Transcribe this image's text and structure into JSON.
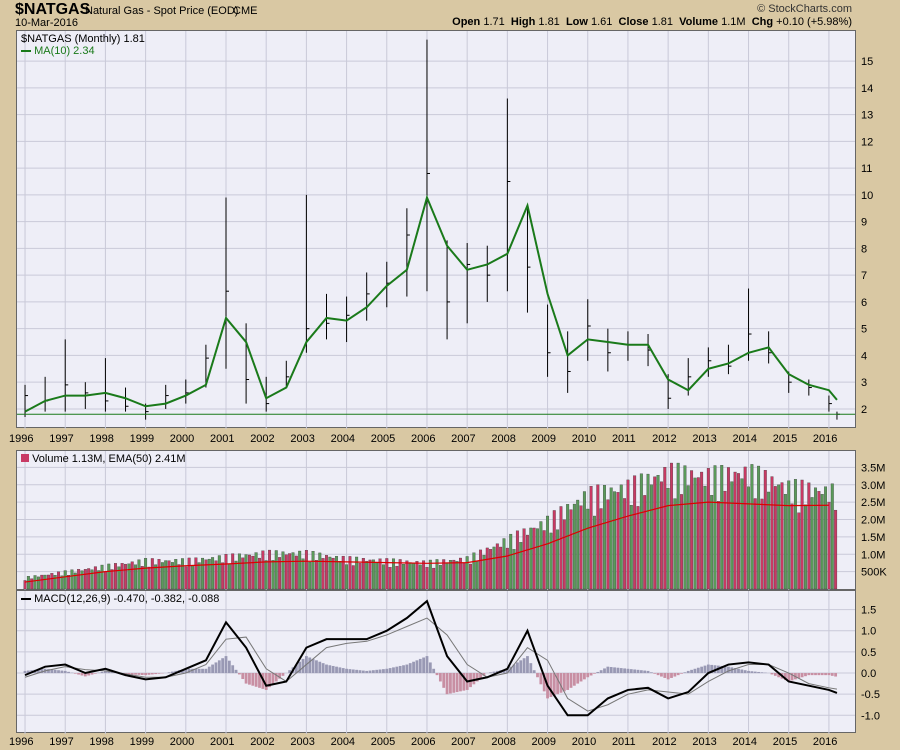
{
  "header": {
    "symbol": "$NATGAS",
    "description": "Natural Gas - Spot Price (EOD)",
    "exchange": "CME",
    "date": "10-Mar-2016",
    "brand": "© StockCharts.com",
    "open_label": "Open",
    "open": "1.71",
    "high_label": "High",
    "high": "1.81",
    "low_label": "Low",
    "low": "1.61",
    "close_label": "Close",
    "close": "1.81",
    "volume_label": "Volume",
    "volume": "1.1M",
    "chg_label": "Chg",
    "chg": "+0.10 (+5.98%)"
  },
  "colors": {
    "ma": "#1a7a1a",
    "ema": "#dd0000",
    "vol_up": "#5a9a5a",
    "vol_down": "#c83a64",
    "macd_line": "#000000",
    "signal_line": "#777777",
    "hist_pos": "#9999b4",
    "hist_neg": "#c88fa3"
  },
  "chart_data": [
    {
      "type": "line",
      "name": "price",
      "legend": [
        "$NATGAS (Monthly) 1.81",
        "MA(10) 2.34"
      ],
      "x_labels": [
        "1996",
        "1997",
        "1998",
        "1999",
        "2000",
        "2001",
        "2002",
        "2003",
        "2004",
        "2005",
        "2006",
        "2007",
        "2008",
        "2009",
        "2010",
        "2011",
        "2012",
        "2013",
        "2014",
        "2015",
        "2016"
      ],
      "y_ticks": [
        2,
        3,
        4,
        5,
        6,
        7,
        8,
        9,
        10,
        11,
        12,
        13,
        14,
        15
      ],
      "ylim": [
        1.4,
        15.9
      ],
      "x": [
        1996.0,
        1996.5,
        1997.0,
        1997.5,
        1998.0,
        1998.5,
        1999.0,
        1999.5,
        2000.0,
        2000.5,
        2001.0,
        2001.5,
        2002.0,
        2002.5,
        2003.0,
        2003.5,
        2004.0,
        2004.5,
        2005.0,
        2005.5,
        2006.0,
        2006.5,
        2007.0,
        2007.5,
        2008.0,
        2008.5,
        2009.0,
        2009.5,
        2010.0,
        2010.5,
        2011.0,
        2011.5,
        2012.0,
        2012.5,
        2013.0,
        2013.5,
        2014.0,
        2014.5,
        2015.0,
        2015.5,
        2016.0,
        2016.2
      ],
      "high": [
        2.9,
        3.2,
        4.6,
        3.0,
        3.9,
        2.8,
        2.2,
        2.9,
        3.1,
        4.4,
        9.9,
        5.2,
        3.2,
        3.8,
        10.0,
        6.3,
        6.2,
        7.1,
        7.5,
        9.5,
        15.8,
        8.3,
        8.2,
        8.1,
        13.6,
        9.6,
        5.9,
        4.9,
        6.1,
        5.0,
        4.9,
        4.8,
        3.3,
        3.9,
        4.3,
        4.4,
        6.5,
        4.9,
        3.4,
        3.1,
        2.5,
        1.9
      ],
      "low": [
        1.7,
        1.9,
        1.9,
        2.0,
        1.9,
        1.9,
        1.6,
        2.0,
        2.2,
        2.8,
        3.5,
        2.2,
        1.9,
        2.8,
        4.1,
        4.6,
        4.5,
        5.3,
        5.8,
        6.2,
        6.4,
        4.6,
        5.2,
        6.0,
        6.4,
        5.6,
        3.2,
        2.6,
        3.8,
        3.4,
        3.8,
        3.6,
        2.0,
        2.5,
        3.2,
        3.3,
        3.8,
        3.7,
        2.6,
        2.5,
        1.9,
        1.6
      ],
      "close": [
        2.5,
        2.3,
        2.9,
        2.6,
        2.3,
        2.1,
        1.9,
        2.5,
        2.6,
        3.9,
        6.4,
        3.1,
        2.2,
        3.2,
        5.0,
        5.2,
        5.5,
        6.3,
        6.7,
        8.5,
        10.8,
        6.0,
        7.4,
        7.0,
        10.5,
        7.3,
        4.1,
        3.4,
        5.1,
        4.1,
        4.4,
        4.2,
        2.4,
        3.2,
        3.8,
        3.6,
        4.8,
        4.1,
        3.0,
        2.8,
        2.2,
        1.8
      ],
      "ma": [
        1.9,
        2.3,
        2.5,
        2.5,
        2.6,
        2.4,
        2.1,
        2.2,
        2.5,
        2.9,
        5.4,
        4.5,
        2.4,
        2.8,
        4.5,
        5.4,
        5.3,
        5.8,
        6.6,
        7.2,
        9.9,
        8.1,
        7.2,
        7.4,
        7.8,
        9.6,
        6.3,
        4.0,
        4.6,
        4.5,
        4.4,
        4.4,
        3.1,
        2.7,
        3.5,
        3.7,
        4.1,
        4.3,
        3.3,
        2.9,
        2.7,
        2.34
      ]
    },
    {
      "type": "bar",
      "name": "volume",
      "legend": "Volume 1.13M, EMA(50) 2.41M",
      "y_ticks": [
        "500K",
        "1.0M",
        "1.5M",
        "2.0M",
        "2.5M",
        "3.0M",
        "3.5M"
      ],
      "y_tick_values": [
        0.5,
        1.0,
        1.5,
        2.0,
        2.5,
        3.0,
        3.5
      ],
      "ylim": [
        0,
        3.8
      ],
      "x": [
        1996.0,
        1997.0,
        1998.0,
        1999.0,
        2000.0,
        2001.0,
        2002.0,
        2003.0,
        2004.0,
        2005.0,
        2006.0,
        2007.0,
        2008.0,
        2009.0,
        2010.0,
        2011.0,
        2012.0,
        2013.0,
        2014.0,
        2015.0,
        2016.0
      ],
      "values": [
        0.3,
        0.45,
        0.6,
        0.75,
        0.75,
        0.85,
        0.95,
        0.95,
        0.8,
        0.75,
        0.7,
        0.8,
        1.3,
        1.8,
        2.5,
        2.7,
        3.1,
        3.0,
        3.1,
        2.7,
        2.6
      ],
      "ema": [
        0.2,
        0.35,
        0.5,
        0.6,
        0.67,
        0.72,
        0.78,
        0.8,
        0.78,
        0.76,
        0.74,
        0.76,
        0.95,
        1.3,
        1.75,
        2.1,
        2.4,
        2.5,
        2.45,
        2.4,
        2.41
      ]
    },
    {
      "type": "line",
      "name": "macd",
      "legend_main": "MACD(12,26,9) -0.470, -0.382, -0.088",
      "y_ticks": [
        "-1.0",
        "-0.5",
        "0.0",
        "0.5",
        "1.0",
        "1.5"
      ],
      "y_tick_values": [
        -1.0,
        -0.5,
        0.0,
        0.5,
        1.0,
        1.5
      ],
      "ylim": [
        -1.3,
        1.75
      ],
      "x": [
        1996.0,
        1996.5,
        1997.0,
        1997.5,
        1998.0,
        1998.5,
        1999.0,
        1999.5,
        2000.0,
        2000.5,
        2001.0,
        2001.5,
        2002.0,
        2002.5,
        2003.0,
        2003.5,
        2004.0,
        2004.5,
        2005.0,
        2005.5,
        2006.0,
        2006.5,
        2007.0,
        2007.5,
        2008.0,
        2008.5,
        2009.0,
        2009.5,
        2010.0,
        2010.5,
        2011.0,
        2011.5,
        2012.0,
        2012.5,
        2013.0,
        2013.5,
        2014.0,
        2014.5,
        2015.0,
        2015.5,
        2016.0,
        2016.2
      ],
      "macd": [
        -0.05,
        0.15,
        0.2,
        0.0,
        0.1,
        -0.05,
        -0.15,
        -0.1,
        0.1,
        0.3,
        1.2,
        0.6,
        -0.3,
        -0.2,
        0.6,
        0.8,
        0.8,
        0.8,
        1.0,
        1.3,
        1.7,
        0.4,
        -0.2,
        -0.1,
        0.1,
        1.0,
        -0.3,
        -1.0,
        -1.0,
        -0.6,
        -0.4,
        -0.35,
        -0.6,
        -0.45,
        0.0,
        0.2,
        0.25,
        0.2,
        -0.2,
        -0.3,
        -0.4,
        -0.47
      ],
      "signal": [
        -0.1,
        0.05,
        0.15,
        0.08,
        0.05,
        -0.02,
        -0.1,
        -0.1,
        0.0,
        0.2,
        0.8,
        0.85,
        0.1,
        -0.2,
        0.2,
        0.6,
        0.7,
        0.75,
        0.9,
        1.1,
        1.3,
        0.9,
        0.2,
        -0.1,
        0.0,
        0.6,
        0.3,
        -0.6,
        -0.9,
        -0.75,
        -0.5,
        -0.4,
        -0.45,
        -0.5,
        -0.2,
        0.05,
        0.2,
        0.2,
        0.0,
        -0.25,
        -0.35,
        -0.38
      ],
      "hist": [
        0.05,
        0.1,
        0.05,
        -0.08,
        0.05,
        -0.03,
        -0.05,
        0.0,
        0.1,
        0.1,
        0.4,
        -0.25,
        -0.4,
        0.0,
        0.4,
        0.2,
        0.1,
        0.05,
        0.1,
        0.2,
        0.4,
        -0.5,
        -0.4,
        0.0,
        0.1,
        0.4,
        -0.6,
        -0.4,
        -0.1,
        0.15,
        0.1,
        0.05,
        -0.15,
        0.05,
        0.2,
        0.15,
        0.05,
        0.0,
        -0.2,
        -0.05,
        -0.05,
        -0.09
      ]
    }
  ]
}
